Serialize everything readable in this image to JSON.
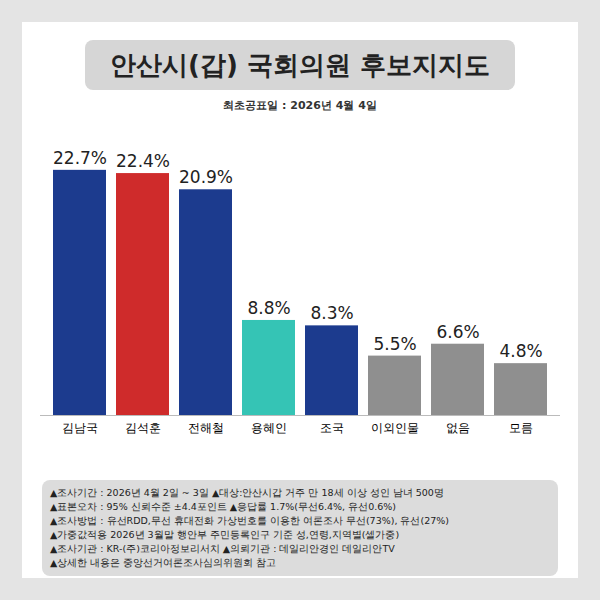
{
  "chart_data": {
    "type": "bar",
    "title": "안산시(갑) 국회의원 후보지지도",
    "subtitle": "최초공표일 : 2026년 4월 4일",
    "categories": [
      "김남국",
      "김석훈",
      "전해철",
      "용혜인",
      "조국",
      "이외인물",
      "없음",
      "모름"
    ],
    "values": [
      22.7,
      22.4,
      20.9,
      8.8,
      8.3,
      5.5,
      6.6,
      4.8
    ],
    "value_labels": [
      "22.7%",
      "22.4%",
      "20.9%",
      "8.8%",
      "8.3%",
      "5.5%",
      "6.6%",
      "4.8%"
    ],
    "colors": [
      "#1c3b8e",
      "#cf2b2b",
      "#1c3b8e",
      "#35c4b5",
      "#1c3b8e",
      "#8f8f8f",
      "#8f8f8f",
      "#8f8f8f"
    ],
    "ylim": [
      0,
      25
    ],
    "yticks": [],
    "data_labels": true,
    "tick_labels": "x",
    "grid": false,
    "annotations": [
      "▲조사기간 : 2026년 4월 2일 ~ 3일 ▲대상:안산시갑 거주 만 18세 이상 성인 남녀 500명",
      "▲표본오차 : 95% 신뢰수준 ±4.4포인트 ▲응답률 1.7%(무선6.4%, 유선0.6%)",
      "▲조사방법 : 유선RDD,무선 휴대전화 가상번호를 이용한 여론조사 무선(73%), 유선(27%)",
      "▲가중값적용 2026년 3월말 행안부 주민등록인구 기준 성,연령,지역별(셀가중)",
      "▲조사기관 : KR-(주)코리아정보리서치 ▲의뢰기관 : 데일리안경인 데일리안TV",
      "▲상세한 내용은 중앙선거여론조사심의위원회 참고"
    ]
  }
}
